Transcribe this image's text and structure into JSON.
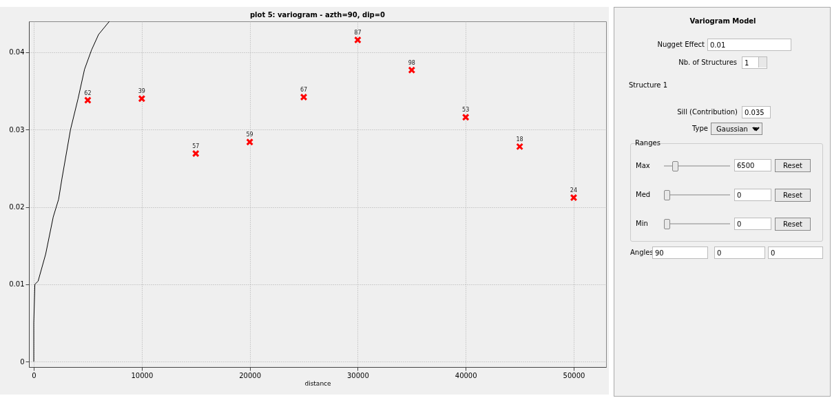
{
  "chart_data": [
    {
      "type": "scatter",
      "title": "plot 5:  variogram - azth=90, dip=0",
      "xlabel": "distance",
      "x": [
        5000,
        10000,
        15000,
        20000,
        25000,
        30000,
        35000,
        40000,
        45000,
        50000
      ],
      "xlim": [
        -450,
        53000
      ],
      "xticks": [
        0,
        10000,
        20000,
        30000,
        40000,
        50000
      ],
      "ylim": [
        -0.0007,
        0.044
      ],
      "yticks": [
        0,
        0.01,
        0.02,
        0.03,
        0.04
      ],
      "grid": true,
      "series": [
        {
          "color": "#ff0000",
          "marker": "cross",
          "values": [
            0.0338,
            0.034,
            0.0269,
            0.0284,
            0.0342,
            0.0416,
            0.0377,
            0.0316,
            0.0278,
            0.0212
          ]
        },
        {
          "type": "line",
          "color": "#000000",
          "marker": "none",
          "x": [
            0,
            0,
            100,
            400,
            1100,
            1800,
            2300,
            2600,
            3400,
            4100,
            4700,
            5350,
            6000,
            7000
          ],
          "values": [
            0,
            0.005,
            0.01,
            0.0104,
            0.0139,
            0.0187,
            0.021,
            0.0236,
            0.03,
            0.034,
            0.0378,
            0.0403,
            0.0423,
            0.044
          ]
        }
      ],
      "annotations": [
        {
          "text": "62",
          "x": 5000,
          "y": 0.0338
        },
        {
          "text": "39",
          "x": 10000,
          "y": 0.034
        },
        {
          "text": "57",
          "x": 15000,
          "y": 0.0269
        },
        {
          "text": "59",
          "x": 20000,
          "y": 0.0284
        },
        {
          "text": "67",
          "x": 25000,
          "y": 0.0342
        },
        {
          "text": "87",
          "x": 30000,
          "y": 0.0416
        },
        {
          "text": "98",
          "x": 35000,
          "y": 0.0377
        },
        {
          "text": "53",
          "x": 40000,
          "y": 0.0316
        },
        {
          "text": "18",
          "x": 45000,
          "y": 0.0278
        },
        {
          "text": "24",
          "x": 50000,
          "y": 0.0212
        }
      ]
    },
    {
      "type": "other",
      "title": "Variogram Model",
      "annotations": [
        "Nugget Effect",
        "0.01",
        "Nb. of Structures",
        "1",
        "Structure 1",
        "Sill (Contribution)",
        "0.035",
        "Type",
        "Gaussian",
        "Ranges",
        "Max",
        "6500",
        "Reset",
        "Med",
        "0",
        "Reset",
        "Min",
        "0",
        "Reset",
        "Angles",
        "90",
        "0",
        "0"
      ]
    }
  ]
}
